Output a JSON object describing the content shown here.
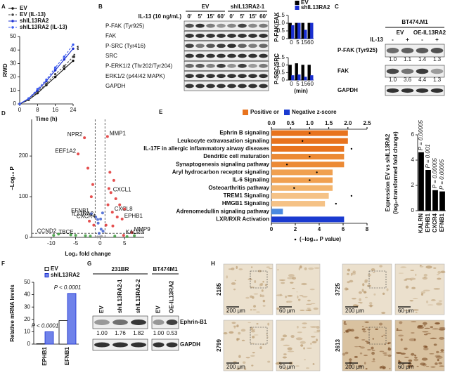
{
  "panel_labels": [
    "A",
    "B",
    "C",
    "D",
    "E",
    "F",
    "G",
    "H"
  ],
  "chart_data": [
    {
      "type": "line",
      "xlabel": "Time (h)",
      "ylabel": "RWD",
      "x": [
        0,
        4,
        8,
        12,
        16,
        20,
        24
      ],
      "xlim": [
        0,
        24
      ],
      "xticks": [
        0,
        8,
        16,
        24
      ],
      "ylim": [
        0,
        50
      ],
      "yticks": [
        0,
        10,
        20,
        30,
        40,
        50
      ],
      "series": [
        {
          "name": "EV",
          "color": "#111111",
          "dashed": false,
          "values": [
            0,
            3,
            8,
            14,
            20,
            26,
            32
          ]
        },
        {
          "name": "EV (IL-13)",
          "color": "#444444",
          "dashed": true,
          "values": [
            0,
            3,
            9,
            15,
            22,
            28,
            35
          ]
        },
        {
          "name": "shIL13RA2",
          "color": "#1a2fd0",
          "dashed": false,
          "values": [
            0,
            4,
            10,
            17,
            25,
            33,
            41
          ]
        },
        {
          "name": "shIL13RA2 (IL-13)",
          "color": "#3a5af0",
          "dashed": true,
          "values": [
            0,
            4,
            11,
            18,
            27,
            35,
            44
          ]
        }
      ],
      "annotations": [
        "**",
        "**"
      ]
    },
    {
      "type": "bar",
      "ylabel": "P-FAK/FAK",
      "categories": [
        "0",
        "5",
        "15",
        "60"
      ],
      "ylim": [
        0,
        1.5
      ],
      "yticks": [
        0,
        0.5,
        {
          "value": 1,
          "label": "1.0"
        },
        {
          "value": 1.5,
          "label": "1.5"
        }
      ],
      "series": [
        {
          "name": "EV",
          "color": "#000000",
          "values": [
            1,
            1,
            1,
            1
          ]
        },
        {
          "name": "shIL13RA2",
          "color": "#1a2fd0",
          "values": [
            0.85,
            1.0,
            0.55,
            1.0
          ]
        }
      ]
    },
    {
      "type": "bar",
      "ylabel": "P-SRC/SRC",
      "xlabel": "(min)",
      "categories": [
        "0",
        "5",
        "15",
        "60"
      ],
      "ylim": [
        0,
        1.5
      ],
      "yticks": [
        0,
        0.5,
        {
          "value": 1,
          "label": "1.0"
        },
        {
          "value": 1.5,
          "label": "1.5"
        }
      ],
      "series": [
        {
          "color": "#000000",
          "values": [
            1,
            1.1,
            1,
            1
          ]
        },
        {
          "color": "#1a2fd0",
          "values": [
            0.3,
            0.35,
            0.2,
            0.3
          ]
        }
      ]
    },
    {
      "type": "scatter",
      "xlabel": "Log₂ fold change",
      "ylabel": "−Log₁₀ P",
      "xlim": [
        -14,
        9
      ],
      "xticks": [
        -10,
        -5,
        0,
        5
      ],
      "ylim": [
        0,
        290
      ],
      "yticks": [
        0,
        100,
        200
      ],
      "thresholds_x": [
        -1,
        1
      ],
      "threshold_y": 10,
      "series": [
        {
          "color": "#e03030",
          "x": [
            -3.2,
            1.5,
            -4.5,
            2.2,
            2.5,
            4.5,
            6.5,
            4.8,
            2,
            2.8,
            3.2,
            1.6,
            1.8,
            -1.5,
            -1.8,
            -2.5,
            4,
            3.5,
            5,
            1.2,
            -1.3,
            -2.2,
            2.6
          ],
          "y": [
            245,
            248,
            205,
            110,
            62,
            45,
            12,
            5,
            160,
            140,
            95,
            80,
            120,
            130,
            100,
            170,
            80,
            50,
            70,
            30,
            30,
            40,
            28
          ],
          "labels": [
            "NPR2",
            "MMP1",
            "EEF1A2",
            "CXCL1",
            "CXCL8",
            "EPHB1",
            "MMP9",
            "KALRN",
            null,
            null,
            null,
            null,
            null,
            null,
            null,
            null,
            null,
            null,
            null,
            null,
            null,
            null,
            null
          ]
        },
        {
          "color": "#4060d0",
          "x": [
            -0.9,
            -1.8,
            -0.5,
            0.2,
            -0.4,
            0.5,
            0.1,
            -0.2,
            0.6
          ],
          "y": [
            50,
            58,
            44,
            20,
            35,
            60,
            45,
            10,
            15
          ],
          "labels": [
            "IL13RA2",
            "EFNB1",
            "CXCR4",
            null,
            null,
            null,
            null,
            null,
            null
          ]
        },
        {
          "color": "#3a9a3a",
          "x": [
            -8.5,
            -5,
            -3,
            -6,
            3,
            -2,
            7,
            -9.5,
            5.5
          ],
          "y": [
            8,
            5,
            4,
            6,
            3,
            3,
            4,
            5,
            2
          ],
          "labels": [
            "CCND2",
            "TBCE",
            null,
            null,
            null,
            null,
            null,
            null,
            null
          ]
        },
        {
          "color": "#999999",
          "x": [
            0,
            0.3,
            -0.5
          ],
          "y": [
            1,
            2,
            1
          ],
          "labels": [
            null,
            null,
            null
          ]
        }
      ]
    },
    {
      "type": "hbar",
      "categories": [
        "Ephrin B signaling",
        "Leukocyte extravasation signaling",
        "IL-17F in allergic inflammatory airway diseases",
        "Dendritic cell maturation",
        "Synaptogenesis signaling pathway",
        "Aryl hydrocarbon  receptor signaling",
        "IL-6 Signaling",
        "Osteoarthritis pathway",
        "TREM1 Signaling",
        "HMGB1 Signaling",
        "Adrenomedullin signaling pathway",
        "LXR/RXR Activation"
      ],
      "values": [
        2.0,
        2.0,
        1.9,
        1.9,
        1.9,
        1.6,
        1.6,
        1.6,
        1.5,
        1.4,
        0.3,
        1.9
      ],
      "colors": [
        "#e8731e",
        "#e8731e",
        "#e8731e",
        "#ec8a35",
        "#ec8a35",
        "#f0a050",
        "#f0a050",
        "#f3b46c",
        "#f5c286",
        "#f5c286",
        "#4a8ae0",
        "#1a3ad0"
      ],
      "dots": [
        3.2,
        2.6,
        6.7,
        3.2,
        1.3,
        3.8,
        3.2,
        1.9,
        6.7,
        5.4,
        null,
        null
      ],
      "x2lim": [
        0,
        2.5
      ],
      "x2ticks": [
        {
          "value": 0,
          "label": "0.0"
        },
        0.5,
        {
          "value": 1,
          "label": "1.0"
        },
        1.5,
        {
          "value": 2,
          "label": "2.0"
        },
        2.5
      ],
      "xlim": [
        0,
        8
      ],
      "xticks": [
        0,
        2,
        4,
        6,
        8
      ],
      "legend": [
        {
          "label": "Positive or",
          "color": "#e8731e"
        },
        {
          "label": "Negative z-score",
          "color": "#1a3ad0"
        }
      ],
      "dot_legend": "(−log₁₀ P value)"
    },
    {
      "type": "bar",
      "ylabel": [
        "Expression EV vs shIL13RA2",
        "(log₂-transformed fold change)"
      ],
      "categories": [
        "KALRN",
        "EPHB1",
        "CXCR4",
        "EFNB1"
      ],
      "ylim": [
        0,
        6
      ],
      "yticks": [
        0,
        2,
        4,
        6
      ],
      "series": [
        {
          "color": "#000000",
          "values": [
            4.6,
            3.2,
            1.6,
            1.5
          ]
        }
      ],
      "annotations": [
        "P = 0.00005",
        "P = 0.001",
        "P = 0.00005",
        "P = 0.00005"
      ]
    },
    {
      "type": "bar",
      "ylabel": "Relative mRNA levels",
      "categories": [
        "EPHB1",
        "EFNB1"
      ],
      "ylim": [
        0,
        50
      ],
      "yticks": [
        0,
        10,
        20,
        30,
        40,
        50
      ],
      "series": [
        {
          "name": "EV",
          "color": "#000000",
          "fill": "#ffffff",
          "values": [
            0.3,
            19
          ]
        },
        {
          "name": "shIL13RA2",
          "color": "#1a2fd0",
          "fill": "#6f82ea",
          "values": [
            10,
            41
          ]
        }
      ],
      "annotations": [
        "P < 0.0001",
        "P < 0.0001"
      ]
    }
  ],
  "blot_b": {
    "treatment": "IL-13 (10 ng/mL)",
    "groups": [
      "EV",
      "shIL13RA2-1"
    ],
    "lanes": [
      "0'",
      "5'",
      "15'",
      "60'",
      "0'",
      "5'",
      "15'",
      "60'"
    ],
    "rows": [
      "P-FAK (Tyr925)",
      "FAK",
      "P-SRC (Tyr416)",
      "SRC",
      "P-ERK1/2 (Thr202/Tyr204)",
      "ERK1/2 (p44/42 MAPK)",
      "GAPDH"
    ]
  },
  "blot_c": {
    "cell_line": "BT474.M1",
    "groups": [
      "EV",
      "OE-IL13RA2"
    ],
    "treatment": "IL-13",
    "lanes": [
      "-",
      "+",
      "-",
      "+"
    ],
    "rows": [
      "P-FAK (Tyr925)",
      "FAK",
      "GAPDH"
    ],
    "quantification": [
      [
        "1.0",
        "1.1",
        "1.4",
        "1.3"
      ],
      [
        "1.0",
        "3.6",
        "4.4",
        "1.3"
      ]
    ]
  },
  "blot_g": {
    "cell_lines": [
      "231BR",
      "BT474M1"
    ],
    "lanes": [
      "EV",
      "shIL13RA2-1",
      "shIL13RA2-2",
      "EV",
      "OE-IL13RA2"
    ],
    "rows": [
      "Ephrin-B1",
      "GAPDH"
    ],
    "quantification": [
      "1.00",
      "1.76",
      "1.82",
      "1.00",
      "0.53"
    ]
  },
  "histology": {
    "samples": [
      "2185",
      "3725",
      "2799",
      "2613"
    ],
    "scale_bars": [
      "200 μm",
      "60 μm"
    ]
  }
}
